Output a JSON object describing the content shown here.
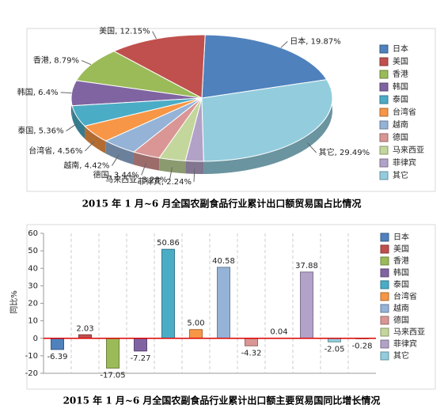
{
  "chart_data": [
    {
      "type": "pie",
      "title": "2015 年 1 月~6 月全国农副食品行业累计出口额贸易国占比情况",
      "categories": [
        "日本",
        "美国",
        "香港",
        "韩国",
        "泰国",
        "台湾省",
        "越南",
        "德国",
        "马来西亚",
        "菲律宾",
        "其它"
      ],
      "values": [
        19.87,
        12.15,
        8.79,
        6.4,
        5.36,
        4.56,
        4.42,
        3.44,
        3.28,
        2.24,
        29.49
      ],
      "value_labels": [
        "日本, 19.87%",
        "美国, 12.15%",
        "香港, 8.79%",
        "韩国, 6.4%",
        "泰国, 5.36%",
        "台湾省, 4.56%",
        "越南, 4.42%",
        "德国, 3.44%",
        "马来西亚, 3.28%",
        "菲律宾, 2.24%",
        "其它, 29.49%"
      ],
      "colors": [
        "#4f81bd",
        "#c0504d",
        "#9bbb59",
        "#8064a2",
        "#4bacc6",
        "#f79646",
        "#95b3d7",
        "#d99694",
        "#c3d69b",
        "#b3a2c7",
        "#93cddd"
      ],
      "legend": "right"
    },
    {
      "type": "bar",
      "title": "2015 年 1 月~6 月全国农副食品行业累计出口额主要贸易国同比增长情况",
      "y_label": "同比%",
      "categories": [
        "日本",
        "美国",
        "香港",
        "韩国",
        "泰国",
        "台湾省",
        "越南",
        "德国",
        "马来西亚",
        "菲律宾",
        "其它",
        null
      ],
      "values": [
        -6.39,
        2.03,
        -17.05,
        -7.27,
        50.86,
        5.0,
        40.58,
        -4.32,
        0.04,
        37.88,
        -2.05,
        -0.28
      ],
      "value_labels": [
        "-6.39",
        "2.03",
        "-17.05",
        "-7.27",
        "50.86",
        "5.00",
        "40.58",
        "-4.32",
        "0.04",
        "37.88",
        "-2.05",
        "-0.28"
      ],
      "colors": [
        "#4f81bd",
        "#c0504d",
        "#9bbb59",
        "#8064a2",
        "#4bacc6",
        "#f79646",
        "#95b3d7",
        "#d99694",
        "#c3d69b",
        "#b3a2c7",
        "#93cddd",
        "#93cddd"
      ],
      "ylim": [
        -20,
        60
      ],
      "yticks": [
        -20,
        -10,
        0,
        10,
        20,
        30,
        40,
        50,
        60
      ],
      "legend": "right"
    }
  ]
}
